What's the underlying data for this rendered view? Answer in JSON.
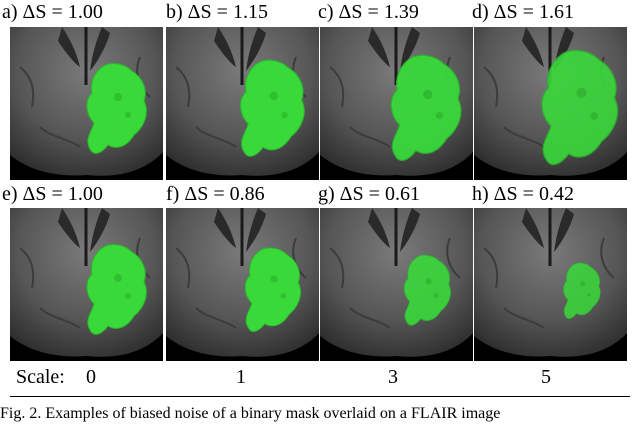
{
  "figure": {
    "panels": [
      {
        "letter": "a)",
        "delta_symbol": "ΔS",
        "equals": "=",
        "value": "1.00",
        "mask_scale": 1.0,
        "mask_opacity": 1.0
      },
      {
        "letter": "b)",
        "delta_symbol": "ΔS",
        "equals": "=",
        "value": "1.15",
        "mask_scale": 1.07,
        "mask_opacity": 1.0
      },
      {
        "letter": "c)",
        "delta_symbol": "ΔS",
        "equals": "=",
        "value": "1.39",
        "mask_scale": 1.17,
        "mask_opacity": 0.95
      },
      {
        "letter": "d)",
        "delta_symbol": "ΔS",
        "equals": "=",
        "value": "1.61",
        "mask_scale": 1.27,
        "mask_opacity": 0.9
      },
      {
        "letter": "e)",
        "delta_symbol": "ΔS",
        "equals": "=",
        "value": "1.00",
        "mask_scale": 1.0,
        "mask_opacity": 1.0
      },
      {
        "letter": "f)",
        "delta_symbol": "ΔS",
        "equals": "=",
        "value": "0.86",
        "mask_scale": 0.93,
        "mask_opacity": 1.0
      },
      {
        "letter": "g)",
        "delta_symbol": "ΔS",
        "equals": "=",
        "value": "0.61",
        "mask_scale": 0.78,
        "mask_opacity": 0.9
      },
      {
        "letter": "h)",
        "delta_symbol": "ΔS",
        "equals": "=",
        "value": "0.42",
        "mask_scale": 0.62,
        "mask_opacity": 0.85
      }
    ],
    "scale_row": {
      "prefix": "Scale:",
      "values": [
        "0",
        "1",
        "3",
        "5"
      ]
    },
    "caption": "Fig. 2.  Examples of biased noise of a binary mask overlaid on a FLAIR image"
  },
  "colors": {
    "mask": "#39d93a",
    "mask_edge": "#2bb52c",
    "background": "#000000",
    "brain": "#5a5a5a"
  }
}
